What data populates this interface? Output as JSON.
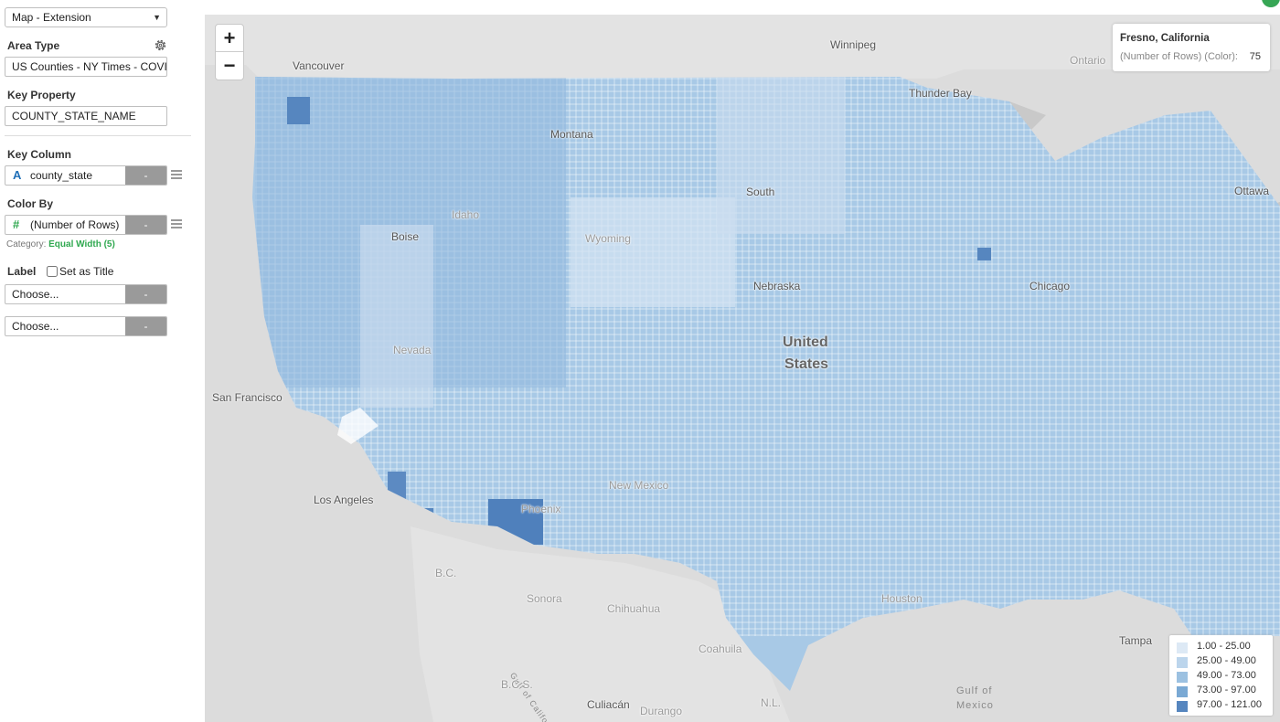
{
  "panel": {
    "map_type": {
      "value": "Map - Extension"
    },
    "area_type": {
      "label": "Area Type",
      "value": "US Counties - NY Times - COVID"
    },
    "key_property": {
      "label": "Key Property",
      "value": "COUNTY_STATE_NAME"
    },
    "key_column": {
      "label": "Key Column",
      "type_icon": "A",
      "value": "county_state",
      "button": "-"
    },
    "color_by": {
      "label": "Color By",
      "type_icon": "#",
      "value": "(Number of Rows)",
      "button": "-",
      "category_label": "Category:",
      "category_value": "Equal Width (5)"
    },
    "label": {
      "label": "Label",
      "checkbox_text": "Set as Title",
      "checked": false,
      "choose_1": "Choose...",
      "choose_2": "Choose...",
      "button": "-"
    }
  },
  "map": {
    "zoom_in": "+",
    "zoom_out": "−",
    "tooltip": {
      "title": "Fresno, California",
      "key": "(Number of Rows) (Color):",
      "value": "75"
    },
    "places": {
      "winnipeg": "Winnipeg",
      "vancouver": "Vancouver",
      "ontario": "Ontario",
      "thunder_bay": "Thunder Bay",
      "montana": "Montana",
      "ottawa": "Ottawa",
      "south": "South",
      "idaho": "Idaho",
      "boise": "Boise",
      "wyoming": "Wyoming",
      "nebraska": "Nebraska",
      "nevada": "Nevada",
      "chicago": "Chicago",
      "united": "United",
      "states": "States",
      "san_francisco": "San Francisco",
      "los_angeles": "Los Angeles",
      "new_mexico": "New Mexico",
      "phoenix": "Phoenix",
      "houston": "Houston",
      "bc": "B.C.",
      "sonora": "Sonora",
      "chihuahua": "Chihuahua",
      "coahuila": "Coahuila",
      "gulf_california": "Gulf of California",
      "bcs": "B.C.S.",
      "culiacan": "Culiacán",
      "durango": "Durango",
      "nl": "N.L.",
      "tampa": "Tampa",
      "gulf_mexico_1": "Gulf of",
      "gulf_mexico_2": "Mexico"
    },
    "legend": [
      {
        "range": "1.00 - 25.00",
        "color": "#dde9f5"
      },
      {
        "range": "25.00 - 49.00",
        "color": "#bcd5ec"
      },
      {
        "range": "49.00 - 73.00",
        "color": "#9cc1e1"
      },
      {
        "range": "73.00 - 97.00",
        "color": "#7aa9d4"
      },
      {
        "range": "97.00 - 121.00",
        "color": "#5686bf"
      }
    ]
  }
}
